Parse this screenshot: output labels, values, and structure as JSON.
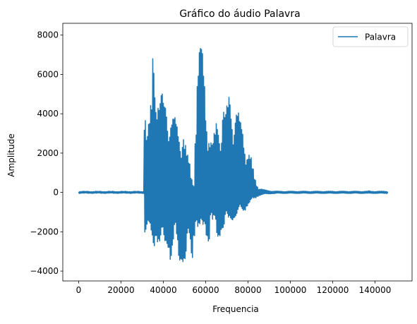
{
  "chart_data": {
    "type": "line",
    "title": "Gráfico do áudio Palavra",
    "xlabel": "Frequencia",
    "ylabel": "Amplitude",
    "xlim": [
      -7500,
      157500
    ],
    "ylim": [
      -4500,
      8600
    ],
    "x_ticks": [
      0,
      20000,
      40000,
      60000,
      80000,
      100000,
      120000,
      140000
    ],
    "x_tick_labels": [
      "0",
      "20000",
      "40000",
      "60000",
      "80000",
      "100000",
      "120000",
      "140000"
    ],
    "y_ticks": [
      -4000,
      -2000,
      0,
      2000,
      4000,
      6000,
      8000
    ],
    "y_tick_labels": [
      "−4000",
      "−2000",
      "0",
      "2000",
      "4000",
      "6000",
      "8000"
    ],
    "legend_position": "top-right",
    "color": "#1f77b4",
    "series": [
      {
        "name": "Palavra",
        "x_step": 1000,
        "x_start": 0,
        "max_envelope": [
          60,
          50,
          60,
          50,
          60,
          50,
          60,
          50,
          60,
          50,
          60,
          50,
          60,
          50,
          60,
          50,
          60,
          50,
          60,
          50,
          60,
          50,
          60,
          50,
          60,
          50,
          60,
          50,
          60,
          50,
          60,
          4600,
          3000,
          3500,
          4500,
          7900,
          7300,
          5500,
          4800,
          5000,
          4600,
          4900,
          4600,
          4300,
          4000,
          3800,
          3500,
          3200,
          3000,
          3600,
          2600,
          1900,
          1500,
          800,
          500,
          4000,
          6500,
          7350,
          7300,
          6500,
          5000,
          3500,
          2800,
          2500,
          3000,
          3800,
          3900,
          3600,
          4600,
          4000,
          4400,
          5200,
          4900,
          4300,
          4500,
          4100,
          3600,
          3400,
          2900,
          2500,
          2200,
          1800,
          1200,
          700,
          400,
          250,
          200,
          150,
          120,
          100,
          90,
          80,
          70,
          70,
          60,
          60,
          60,
          60,
          60,
          60,
          60,
          60,
          60,
          60,
          60,
          60,
          60,
          60,
          60,
          60,
          60,
          60,
          60,
          60,
          60,
          60,
          60,
          60,
          60,
          60,
          60,
          60,
          60,
          60,
          60,
          60,
          60,
          60,
          60,
          60,
          60,
          60,
          60,
          60,
          60,
          60,
          60,
          80,
          60,
          60,
          60,
          60,
          60,
          60,
          60,
          60,
          60
        ],
        "min_envelope": [
          -50,
          -40,
          -50,
          -40,
          -50,
          -40,
          -50,
          -40,
          -50,
          -40,
          -50,
          -40,
          -50,
          -40,
          -50,
          -40,
          -50,
          -40,
          -50,
          -40,
          -50,
          -40,
          -50,
          -40,
          -50,
          -40,
          -50,
          -40,
          -50,
          -40,
          -50,
          -2100,
          -2000,
          -2500,
          -2600,
          -2800,
          -2200,
          -2600,
          -3000,
          -2900,
          -3000,
          -2700,
          -2800,
          -3500,
          -3200,
          -2600,
          -3000,
          -3600,
          -3400,
          -3600,
          -3950,
          -3200,
          -3000,
          -3500,
          -2200,
          -1500,
          -2000,
          -2400,
          -2100,
          -1700,
          -2200,
          -2500,
          -1300,
          -2000,
          -1800,
          -2400,
          -2200,
          -1900,
          -2000,
          -1600,
          -1700,
          -1400,
          -1400,
          -1300,
          -1300,
          -1200,
          -1000,
          -1000,
          -900,
          -700,
          -600,
          -500,
          -400,
          -300,
          -200,
          -150,
          -120,
          -100,
          -90,
          -80,
          -70,
          -60,
          -60,
          -50,
          -50,
          -50,
          -50,
          -50,
          -50,
          -50,
          -50,
          -50,
          -50,
          -50,
          -50,
          -50,
          -50,
          -50,
          -50,
          -50,
          -50,
          -50,
          -50,
          -50,
          -50,
          -50,
          -50,
          -50,
          -50,
          -50,
          -50,
          -50,
          -50,
          -50,
          -50,
          -50,
          -50,
          -50,
          -50,
          -50,
          -50,
          -50,
          -50,
          -50,
          -50,
          -50,
          -60,
          -50,
          -50,
          -50,
          -50,
          -50,
          -50,
          -50,
          -50,
          -50
        ]
      }
    ]
  }
}
